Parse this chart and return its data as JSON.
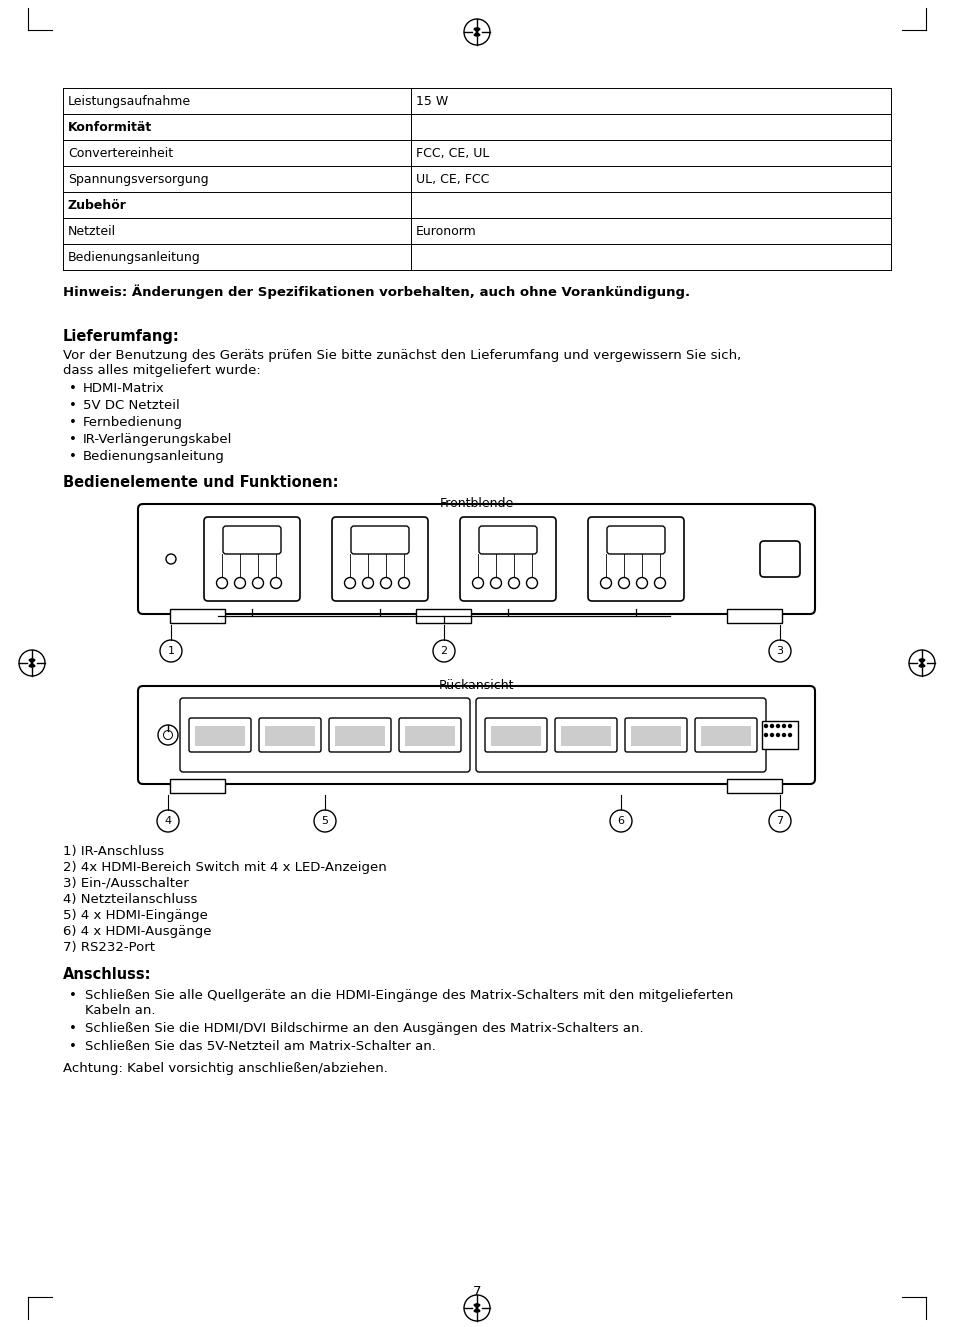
{
  "page_num": "7",
  "table_rows": [
    [
      "Leistungsaufnahme",
      "15 W",
      false
    ],
    [
      "Konformität",
      "",
      true
    ],
    [
      "Convertereinheit",
      "FCC, CE, UL",
      false
    ],
    [
      "Spannungsversorgung",
      "UL, CE, FCC",
      false
    ],
    [
      "Zubehör",
      "",
      true
    ],
    [
      "Netzteil",
      "Euronorm",
      false
    ],
    [
      "Bedienungsanleitung",
      "",
      false
    ]
  ],
  "hinweis": "Hinweis: Änderungen der Spezifikationen vorbehalten, auch ohne Vorankündigung.",
  "lieferumfang_title": "Lieferumfang:",
  "lieferumfang_text1": "Vor der Benutzung des Geräts prüfen Sie bitte zunächst den Lieferumfang und vergewissern Sie sich,",
  "lieferumfang_text2": "dass alles mitgeliefert wurde:",
  "lieferumfang_items": [
    "HDMI-Matrix",
    "5V DC Netzteil",
    "Fernbedienung",
    "IR-Verlängerungskabel",
    "Bedienungsanleitung"
  ],
  "bedien_title": "Bedienelemente und Funktionen:",
  "frontblende_label": "Frontblende",
  "rueckansicht_label": "Rückansicht",
  "descriptions": [
    "1) IR-Anschluss",
    "2) 4x HDMI-Bereich Switch mit 4 x LED-Anzeigen",
    "3) Ein-/Ausschalter",
    "4) Netzteilanschluss",
    "5) 4 x HDMI-Eingänge",
    "6) 4 x HDMI-Ausgänge",
    "7) RS232-Port"
  ],
  "anschluss_title": "Anschluss:",
  "anschluss_bullet1_line1": "Schließen Sie alle Quellgeräte an die HDMI-Eingänge des Matrix-Schalters mit den mitgelieferten",
  "anschluss_bullet1_line2": "Kabeln an.",
  "anschluss_bullet2": "Schließen Sie die HDMI/DVI Bildschirme an den Ausgängen des Matrix-Schalters an.",
  "anschluss_bullet3": "Schließen Sie das 5V-Netzteil am Matrix-Schalter an.",
  "achtung": "Achtung: Kabel vorsichtig anschließen/abziehen.",
  "bg_color": "#ffffff"
}
